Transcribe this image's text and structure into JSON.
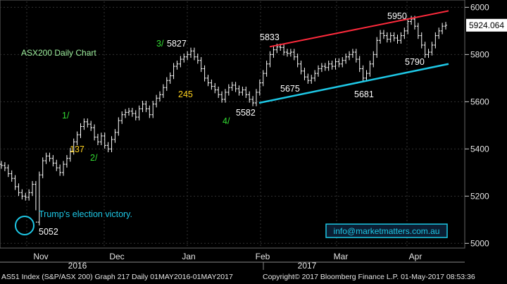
{
  "chart_data": {
    "type": "ohlc",
    "title": "ASX200 Daily Chart",
    "y_axis": {
      "ticks": [
        5000,
        5200,
        5400,
        5600,
        5800,
        6000
      ],
      "range": [
        4980,
        6025
      ]
    },
    "x_axis": {
      "months": [
        "Nov",
        "Dec",
        "Jan",
        "Feb",
        "Mar",
        "Apr"
      ],
      "years": [
        "2016",
        "2017"
      ]
    },
    "last_price": "5924.064",
    "series": [
      {
        "name": "ASX200",
        "values": [
          5330,
          5320,
          5295,
          5275,
          5240,
          5215,
          5200,
          5195,
          5215,
          5250,
          5090,
          5290,
          5350,
          5370,
          5360,
          5340,
          5320,
          5300,
          5335,
          5360,
          5390,
          5430,
          5460,
          5495,
          5515,
          5505,
          5490,
          5450,
          5430,
          5455,
          5415,
          5400,
          5440,
          5470,
          5520,
          5545,
          5555,
          5560,
          5550,
          5535,
          5570,
          5590,
          5570,
          5545,
          5590,
          5615,
          5630,
          5660,
          5690,
          5710,
          5750,
          5760,
          5780,
          5790,
          5800,
          5815,
          5790,
          5775,
          5740,
          5700,
          5680,
          5665,
          5650,
          5630,
          5610,
          5640,
          5660,
          5670,
          5655,
          5640,
          5650,
          5630,
          5610,
          5595,
          5640,
          5680,
          5720,
          5760,
          5800,
          5820,
          5832,
          5830,
          5810,
          5805,
          5810,
          5790,
          5760,
          5730,
          5705,
          5690,
          5700,
          5720,
          5740,
          5750,
          5745,
          5760,
          5750,
          5770,
          5760,
          5775,
          5790,
          5800,
          5810,
          5780,
          5740,
          5700,
          5720,
          5760,
          5800,
          5860,
          5890,
          5880,
          5865,
          5880,
          5870,
          5860,
          5880,
          5900,
          5940,
          5950,
          5920,
          5880,
          5840,
          5800,
          5810,
          5840,
          5880,
          5900,
          5920,
          5924
        ]
      }
    ],
    "markers": [
      {
        "label": "1/",
        "color": "#33dd33"
      },
      {
        "label": "137",
        "color": "#ffd21e"
      },
      {
        "label": "2/",
        "color": "#33dd33"
      },
      {
        "label": "3/",
        "color": "#33dd33"
      },
      {
        "label": "5827",
        "color": "#ffffff"
      },
      {
        "label": "245",
        "color": "#ffd21e"
      },
      {
        "label": "4/",
        "color": "#33dd33"
      },
      {
        "label": "5582",
        "color": "#ffffff"
      },
      {
        "label": "5833",
        "color": "#ffffff"
      },
      {
        "label": "5675",
        "color": "#ffffff"
      },
      {
        "label": "5681",
        "color": "#ffffff"
      },
      {
        "label": "5950",
        "color": "#ffffff"
      },
      {
        "label": "5790",
        "color": "#ffffff"
      }
    ],
    "annotations": {
      "election_text": "Trump's election victory.",
      "election_low": "5052",
      "website": "info@marketmatters.com.au"
    },
    "trendlines": [
      {
        "name": "upper",
        "color": "#ff2a3c",
        "from": 5833,
        "to": 5985
      },
      {
        "name": "lower",
        "color": "#1ec8e6",
        "from": 5595,
        "to": 5760
      }
    ]
  },
  "footer": {
    "left": "AS51 Index (S&P/ASX 200) Graph 217  Daily 01MAY2016-01MAY2017",
    "right": "Copyright© 2017 Bloomberg Finance L.P.     01-May-2017 08:53:36"
  },
  "colors": {
    "background": "#000000",
    "bars": "#ffffff",
    "axis": "#cccccc",
    "title": "#9ef09e",
    "accent_cyan": "#1ec8e6",
    "accent_red": "#ff2a3c"
  }
}
